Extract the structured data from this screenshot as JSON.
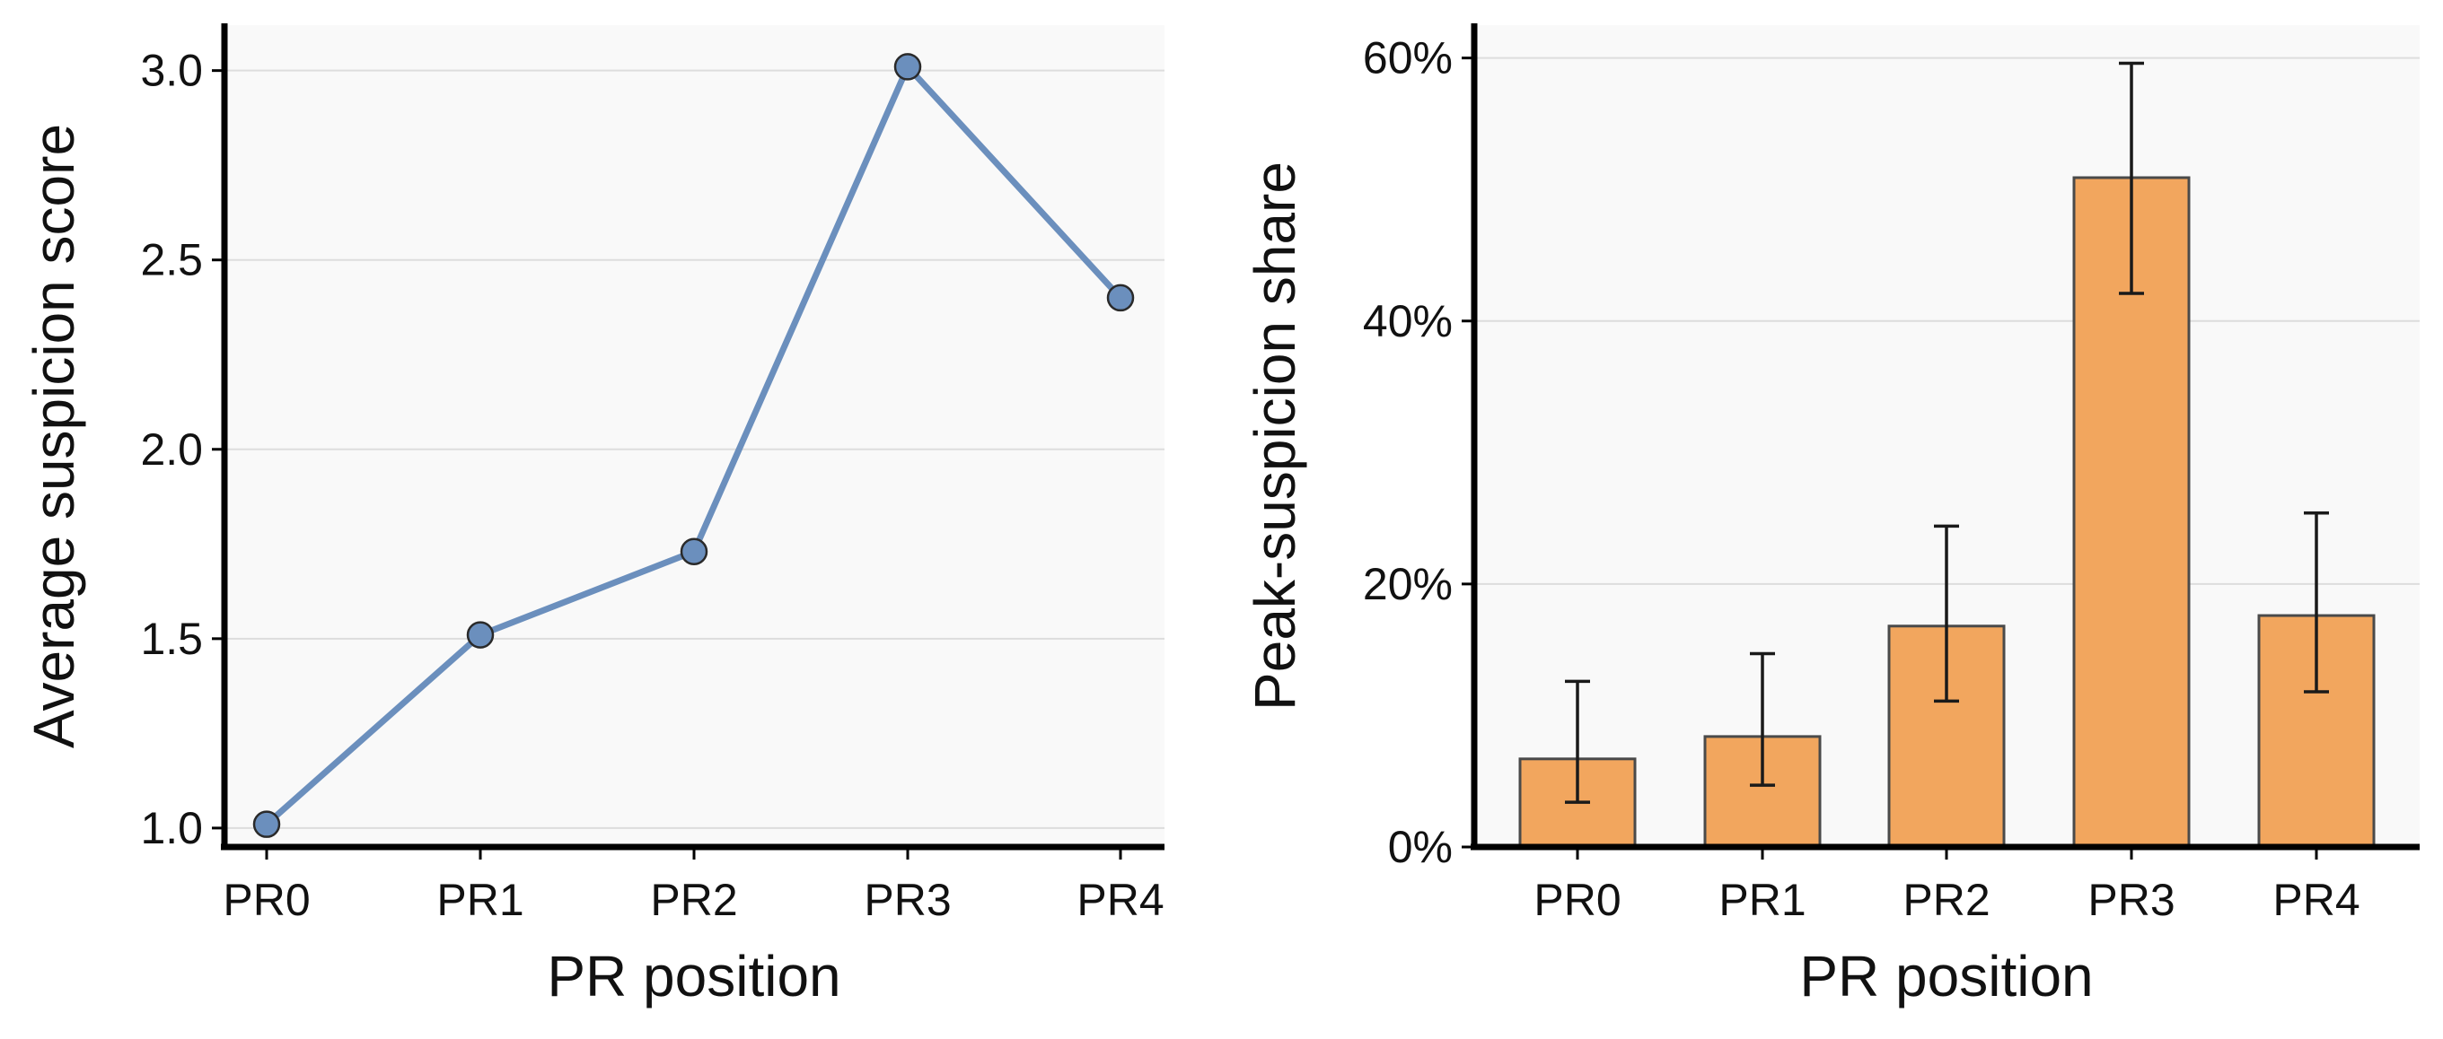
{
  "chart_data": [
    {
      "type": "line",
      "categories": [
        "PR0",
        "PR1",
        "PR2",
        "PR3",
        "PR4"
      ],
      "values": [
        1.01,
        1.51,
        1.73,
        3.01,
        2.4
      ],
      "xlabel": "PR position",
      "ylabel": "Average suspicion score",
      "ylim": [
        0.95,
        3.12
      ],
      "yticks": [
        1.0,
        1.5,
        2.0,
        2.5,
        3.0
      ],
      "ytick_labels": [
        "1.0",
        "1.5",
        "2.0",
        "2.5",
        "3.0"
      ],
      "grid": "horizontal",
      "color": "#6b8fbd"
    },
    {
      "type": "bar",
      "categories": [
        "PR0",
        "PR1",
        "PR2",
        "PR3",
        "PR4"
      ],
      "values": [
        6.7,
        8.4,
        16.8,
        50.9,
        17.6
      ],
      "error_low": [
        3.4,
        4.7,
        11.1,
        42.1,
        11.8
      ],
      "error_high": [
        12.6,
        14.7,
        24.4,
        59.6,
        25.4
      ],
      "xlabel": "PR position",
      "ylabel": "Peak-suspicion share",
      "ylim": [
        0,
        62.5
      ],
      "yticks": [
        0,
        20,
        40,
        60
      ],
      "ytick_labels": [
        "0%",
        "20%",
        "40%",
        "60%"
      ],
      "grid": "horizontal",
      "color": "#f2a65e"
    }
  ]
}
